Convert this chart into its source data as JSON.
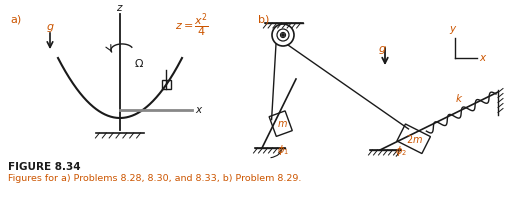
{
  "fig_width": 5.06,
  "fig_height": 2.08,
  "dpi": 100,
  "bg_color": "#ffffff",
  "orange_color": "#cc5500",
  "dark_color": "#1a1a1a",
  "gray_color": "#888888",
  "figure_title": "FIGURE 8.34",
  "figure_caption": "Figures for a) Problems 8.28, 8.30, and 8.33, b) Problem 8.29."
}
